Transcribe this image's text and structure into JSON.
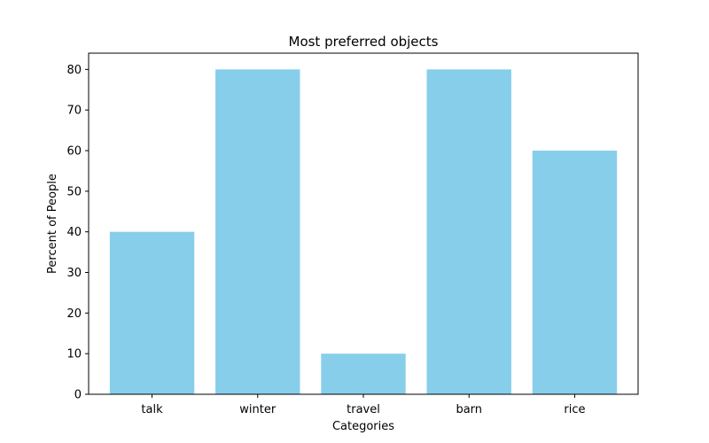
{
  "chart_data": {
    "type": "bar",
    "title": "Most preferred objects",
    "xlabel": "Categories",
    "ylabel": "Percent of People",
    "categories": [
      "talk",
      "winter",
      "travel",
      "barn",
      "rice"
    ],
    "values": [
      40,
      80,
      10,
      80,
      60
    ],
    "ylim": [
      0,
      84
    ],
    "yticks": [
      0,
      10,
      20,
      30,
      40,
      50,
      60,
      70,
      80
    ],
    "bar_color": "#87ceeb",
    "grid": false,
    "legend": "none"
  }
}
